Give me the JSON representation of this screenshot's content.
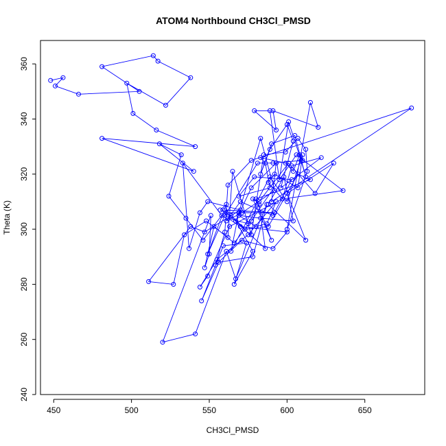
{
  "chart_data": {
    "type": "line",
    "title": "ATOM4 Northbound CH3Cl_PMSD",
    "xlabel": "CH3Cl_PMSD",
    "ylabel": "Theta (K)",
    "xlim": [
      441.5,
      688.5
    ],
    "ylim": [
      240,
      368.5
    ],
    "xticks": [
      450,
      500,
      550,
      600,
      650
    ],
    "yticks": [
      240,
      260,
      280,
      300,
      320,
      340,
      360
    ],
    "grid": false,
    "legend": "none",
    "series": [
      {
        "color": "#0000ff",
        "marker": "open-circle",
        "x": [
          448,
          456,
          451,
          466,
          505,
          481,
          514,
          517,
          538,
          522,
          497,
          501,
          516,
          541,
          481,
          540,
          518,
          532,
          524,
          535,
          546,
          558,
          533,
          537,
          544,
          549,
          570,
          547,
          538,
          511,
          527,
          534,
          548,
          562,
          565,
          577,
          585,
          599,
          607,
          612,
          613,
          600,
          615,
          620,
          591,
          593,
          579,
          589,
          595,
          601,
          609,
          612,
          605,
          590,
          583,
          589,
          600,
          604,
          596,
          622,
          603,
          597,
          588,
          592,
          607,
          610,
          600,
          589,
          564,
          569,
          583,
          592,
          571,
          561,
          570,
          591,
          603,
          579,
          569,
          589,
          586,
          583,
          599,
          604,
          608,
          610,
          591,
          581,
          560,
          549,
          561,
          557,
          564,
          573,
          588,
          607,
          615,
          580,
          590,
          578,
          582,
          601,
          618,
          630,
          600,
          612,
          588,
          598,
          604,
          583,
          569,
          580,
          587,
          593,
          575,
          555,
          544,
          549,
          563,
          597,
          636,
          606,
          577,
          566,
          553,
          547,
          550,
          551,
          520,
          541,
          561,
          567,
          587,
          578,
          556,
          545,
          559,
          574,
          566,
          578,
          567,
          577,
          593,
          590,
          680,
          577,
          562,
          560,
          554,
          571,
          591,
          600,
          570,
          562,
          575,
          582,
          586,
          561,
          592,
          560
        ],
        "y": [
          354,
          355,
          352,
          349,
          350,
          359,
          363,
          361,
          355,
          345,
          353,
          342,
          336,
          330,
          333,
          321,
          331,
          327,
          312,
          304,
          296,
          305,
          324,
          293,
          306,
          310,
          307,
          299,
          301,
          281,
          280,
          298,
          303,
          297,
          321,
          298,
          327,
          328,
          333,
          329,
          321,
          300,
          346,
          337,
          343,
          336,
          343,
          343,
          318,
          339,
          325,
          319,
          334,
          331,
          320,
          329,
          338,
          332,
          315,
          326,
          323,
          311,
          317,
          320,
          315,
          327,
          310,
          319,
          292,
          306,
          333,
          314,
          306,
          303,
          310,
          305,
          318,
          319,
          312,
          315,
          324,
          326,
          324,
          321,
          327,
          325,
          324,
          324,
          305,
          291,
          309,
          307,
          305,
          300,
          301,
          320,
          318,
          311,
          296,
          311,
          310,
          324,
          313,
          324,
          313,
          296,
          309,
          319,
          303,
          304,
          305,
          301,
          302,
          310,
          298,
          289,
          279,
          283,
          301,
          311,
          314,
          327,
          303,
          295,
          301,
          286,
          291,
          305,
          259,
          262,
          292,
          282,
          309,
          290,
          288,
          274,
          294,
          295,
          280,
          292,
          303,
          315,
          324,
          310,
          344,
          325,
          316,
          299,
          287,
          296,
          293,
          299,
          301,
          304,
          302,
          309,
          293,
          306,
          306,
          307
        ]
      }
    ]
  }
}
